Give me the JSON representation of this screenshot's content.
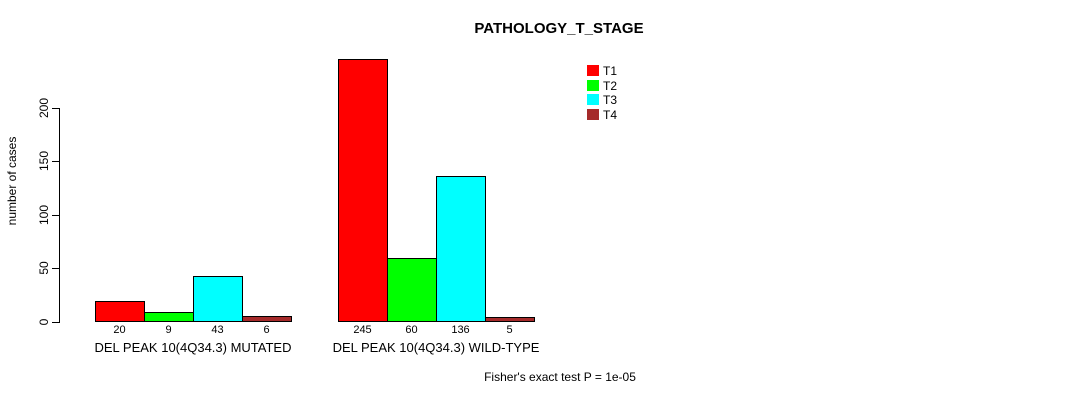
{
  "chart_data": {
    "type": "bar",
    "title": "PATHOLOGY_T_STAGE",
    "xlabel": "",
    "ylabel": "number of cases",
    "ylim": [
      0,
      250
    ],
    "yticks": [
      0,
      50,
      100,
      150,
      200
    ],
    "grid": false,
    "legend_position": "top-right",
    "categories": [
      "DEL PEAK 10(4Q34.3) MUTATED",
      "DEL PEAK 10(4Q34.3) WILD-TYPE"
    ],
    "series": [
      {
        "name": "T1",
        "color": "#FF0000",
        "values": [
          20,
          245
        ]
      },
      {
        "name": "T2",
        "color": "#00FF00",
        "values": [
          9,
          60
        ]
      },
      {
        "name": "T3",
        "color": "#00FFFF",
        "values": [
          43,
          136
        ]
      },
      {
        "name": "T4",
        "color": "#A52A2A",
        "values": [
          6,
          5
        ]
      }
    ],
    "bar_value_labels": [
      [
        "20",
        "9",
        "43",
        "6"
      ],
      [
        "245",
        "60",
        "136",
        "5"
      ]
    ],
    "annotation": "Fisher's exact test P = 1e-05"
  }
}
